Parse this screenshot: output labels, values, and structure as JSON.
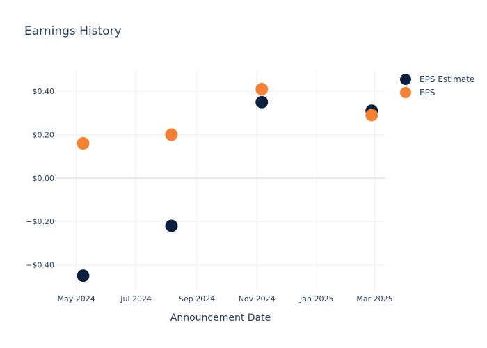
{
  "chart_data": {
    "type": "scatter",
    "title": "Earnings History",
    "xlabel": "Announcement Date",
    "ylabel": "",
    "x_ticks": [
      {
        "date": "2024-05-01",
        "label": "May 2024"
      },
      {
        "date": "2024-07-01",
        "label": "Jul 2024"
      },
      {
        "date": "2024-09-01",
        "label": "Sep 2024"
      },
      {
        "date": "2024-11-01",
        "label": "Nov 2024"
      },
      {
        "date": "2025-01-01",
        "label": "Jan 2025"
      },
      {
        "date": "2025-03-01",
        "label": "Mar 2025"
      }
    ],
    "y_ticks": [
      {
        "value": 0.4,
        "label": "$0.40"
      },
      {
        "value": 0.2,
        "label": "$0.20"
      },
      {
        "value": 0.0,
        "label": "$0.00"
      },
      {
        "value": -0.2,
        "label": "−$0.20"
      },
      {
        "value": -0.4,
        "label": "−$0.40"
      }
    ],
    "ylim": [
      -0.52,
      0.5
    ],
    "xlim": [
      "2024-04-10",
      "2025-03-12"
    ],
    "legend_position": "top-right",
    "grid": true,
    "series": [
      {
        "name": "EPS Estimate",
        "color": "#0b1f3f",
        "points": [
          {
            "x": "2024-05-08",
            "y": -0.45
          },
          {
            "x": "2024-08-06",
            "y": -0.22
          },
          {
            "x": "2024-11-06",
            "y": 0.35
          },
          {
            "x": "2025-02-26",
            "y": 0.31
          }
        ]
      },
      {
        "name": "EPS",
        "color": "#f58233",
        "points": [
          {
            "x": "2024-05-08",
            "y": 0.16
          },
          {
            "x": "2024-08-06",
            "y": 0.2
          },
          {
            "x": "2024-11-06",
            "y": 0.41
          },
          {
            "x": "2025-02-26",
            "y": 0.29
          }
        ]
      }
    ]
  }
}
